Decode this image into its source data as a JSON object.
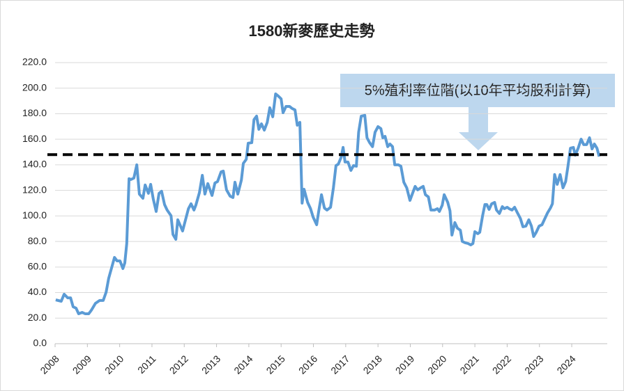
{
  "chart_data": {
    "type": "line",
    "title": "1580新麥歷史走勢",
    "x": [
      2008.02,
      2008.19,
      2008.28,
      2008.39,
      2008.48,
      2008.56,
      2008.65,
      2008.73,
      2008.84,
      2008.93,
      2009.04,
      2009.12,
      2009.25,
      2009.38,
      2009.49,
      2009.58,
      2009.66,
      2009.75,
      2009.84,
      2009.92,
      2010.01,
      2010.1,
      2010.16,
      2010.22,
      2010.29,
      2010.35,
      2010.44,
      2010.53,
      2010.61,
      2010.72,
      2010.79,
      2010.89,
      2010.96,
      2011.04,
      2011.13,
      2011.22,
      2011.3,
      2011.39,
      2011.47,
      2011.59,
      2011.65,
      2011.74,
      2011.8,
      2011.95,
      2012.04,
      2012.13,
      2012.21,
      2012.3,
      2012.36,
      2012.47,
      2012.56,
      2012.64,
      2012.73,
      2012.86,
      2012.95,
      2013.03,
      2013.14,
      2013.21,
      2013.31,
      2013.42,
      2013.51,
      2013.57,
      2013.66,
      2013.77,
      2013.83,
      2013.92,
      2013.98,
      2014.09,
      2014.16,
      2014.24,
      2014.31,
      2014.39,
      2014.48,
      2014.57,
      2014.65,
      2014.74,
      2014.83,
      2014.91,
      2015.0,
      2015.06,
      2015.15,
      2015.26,
      2015.34,
      2015.43,
      2015.5,
      2015.58,
      2015.65,
      2015.71,
      2015.82,
      2015.91,
      2015.99,
      2016.1,
      2016.16,
      2016.25,
      2016.34,
      2016.42,
      2016.53,
      2016.62,
      2016.7,
      2016.77,
      2016.86,
      2016.92,
      2016.98,
      2017.07,
      2017.16,
      2017.24,
      2017.33,
      2017.4,
      2017.48,
      2017.59,
      2017.66,
      2017.74,
      2017.83,
      2017.91,
      2018.0,
      2018.09,
      2018.15,
      2018.22,
      2018.3,
      2018.37,
      2018.45,
      2018.52,
      2018.63,
      2018.71,
      2018.8,
      2018.89,
      2018.99,
      2019.06,
      2019.15,
      2019.23,
      2019.32,
      2019.4,
      2019.47,
      2019.56,
      2019.64,
      2019.75,
      2019.84,
      2019.9,
      2019.99,
      2020.05,
      2020.16,
      2020.23,
      2020.29,
      2020.38,
      2020.46,
      2020.55,
      2020.61,
      2020.7,
      2020.79,
      2020.87,
      2020.94,
      2021.0,
      2021.09,
      2021.15,
      2021.24,
      2021.31,
      2021.37,
      2021.44,
      2021.52,
      2021.61,
      2021.67,
      2021.76,
      2021.85,
      2021.91,
      2022.0,
      2022.06,
      2022.15,
      2022.23,
      2022.32,
      2022.41,
      2022.49,
      2022.58,
      2022.67,
      2022.75,
      2022.82,
      2022.9,
      2022.99,
      2023.08,
      2023.16,
      2023.25,
      2023.34,
      2023.4,
      2023.47,
      2023.55,
      2023.64,
      2023.73,
      2023.81,
      2023.88,
      2023.96,
      2024.05,
      2024.11,
      2024.2,
      2024.29,
      2024.37,
      2024.46,
      2024.55,
      2024.63,
      2024.7,
      2024.78,
      2024.85
    ],
    "series": [
      {
        "color": "#5b9bd5",
        "values": [
          34.3,
          33.2,
          38.7,
          35.9,
          35.9,
          28.9,
          27.8,
          23.4,
          24.5,
          23.4,
          23.4,
          26.1,
          31.6,
          33.8,
          33.8,
          40.3,
          51.2,
          59.4,
          67.5,
          64.8,
          64.8,
          58.8,
          63.2,
          78.4,
          129.1,
          128.5,
          129.6,
          140.0,
          117.1,
          113.8,
          124.2,
          117.7,
          124.7,
          113.3,
          103.5,
          117.7,
          119.3,
          108.9,
          104.6,
          100.2,
          85.5,
          81.7,
          97.0,
          88.2,
          97.0,
          105.7,
          109.5,
          104.6,
          108.4,
          118.2,
          131.8,
          117.1,
          125.3,
          116.0,
          125.8,
          126.9,
          134.5,
          135.1,
          120.4,
          115.5,
          114.4,
          126.4,
          117.1,
          128.0,
          141.1,
          144.3,
          156.9,
          157.4,
          175.4,
          178.1,
          167.8,
          172.1,
          167.2,
          173.2,
          184.7,
          177.6,
          195.5,
          193.9,
          191.7,
          180.8,
          185.7,
          185.7,
          184.1,
          183.0,
          171.0,
          173.2,
          110.0,
          120.9,
          110.6,
          105.7,
          99.1,
          93.1,
          102.9,
          116.6,
          106.2,
          104.6,
          106.8,
          122.0,
          139.4,
          140.5,
          146.0,
          153.6,
          142.2,
          142.2,
          135.6,
          139.4,
          138.9,
          165.6,
          178.1,
          178.7,
          161.2,
          157.4,
          154.2,
          165.6,
          169.9,
          168.3,
          161.2,
          162.3,
          154.2,
          156.3,
          154.2,
          140.0,
          140.0,
          138.9,
          126.4,
          122.0,
          112.2,
          117.1,
          123.1,
          120.4,
          122.0,
          123.1,
          116.6,
          114.9,
          104.6,
          104.6,
          105.7,
          103.5,
          108.4,
          116.6,
          110.6,
          104.0,
          85.0,
          94.8,
          90.4,
          88.8,
          80.1,
          79.0,
          78.4,
          77.3,
          78.4,
          87.7,
          86.1,
          87.2,
          100.2,
          108.9,
          108.9,
          105.1,
          109.5,
          110.6,
          104.6,
          101.9,
          107.3,
          105.7,
          106.8,
          105.7,
          104.6,
          106.8,
          102.4,
          98.0,
          91.5,
          92.1,
          97.0,
          92.1,
          83.9,
          87.2,
          92.1,
          93.1,
          97.5,
          102.4,
          106.2,
          109.5,
          132.4,
          124.7,
          132.4,
          122.0,
          126.9,
          138.4,
          153.1,
          153.6,
          147.6,
          153.1,
          160.1,
          155.8,
          155.8,
          161.2,
          152.5,
          156.3,
          153.1,
          146.5
        ]
      }
    ],
    "xlim": [
      2008,
      2025.1
    ],
    "xticks": [
      2008,
      2009,
      2010,
      2011,
      2012,
      2013,
      2014,
      2015,
      2016,
      2017,
      2018,
      2019,
      2020,
      2021,
      2022,
      2023,
      2024
    ],
    "ylim": [
      0,
      220
    ],
    "yticks": [
      {
        "value": 0,
        "label": "0.0"
      },
      {
        "value": 20,
        "label": "20.0"
      },
      {
        "value": 40,
        "label": "40.0"
      },
      {
        "value": 60,
        "label": "60.0"
      },
      {
        "value": 80,
        "label": "80.0"
      },
      {
        "value": 100,
        "label": "100.0"
      },
      {
        "value": 120,
        "label": "120.0"
      },
      {
        "value": 140,
        "label": "140.0"
      },
      {
        "value": 160,
        "label": "160.0"
      },
      {
        "value": 180,
        "label": "180.0"
      },
      {
        "value": 200,
        "label": "200.0"
      },
      {
        "value": 220,
        "label": "220.0"
      }
    ],
    "grid": true,
    "reference_line": {
      "value": 148,
      "color": "#000000"
    },
    "annotation": "5%殖利率位階(以10年平均股利計算)"
  }
}
